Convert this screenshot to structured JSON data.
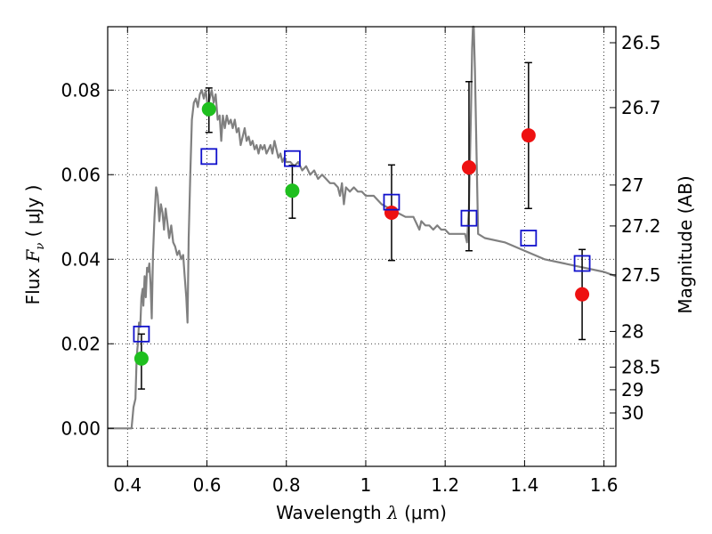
{
  "chart_data": {
    "type": "scatter",
    "xlabel": {
      "prefix": "Wavelength",
      "symbol": "λ",
      "unit": "(μm)"
    },
    "ylabel": {
      "prefix": "Flux",
      "symbol": "F",
      "subscript": "ν",
      "unit": "( μJy )"
    },
    "ylabel_right": "Magnitude (AB)",
    "xlim": [
      0.35,
      1.63
    ],
    "ylim": [
      -0.009,
      0.095
    ],
    "grid": true,
    "x_ticks": [
      {
        "value": 0.4,
        "label": "0.4"
      },
      {
        "value": 0.6,
        "label": "0.6"
      },
      {
        "value": 0.8,
        "label": "0.8"
      },
      {
        "value": 1.0,
        "label": "1"
      },
      {
        "value": 1.2,
        "label": "1.2"
      },
      {
        "value": 1.4,
        "label": "1.4"
      },
      {
        "value": 1.6,
        "label": "1.6"
      }
    ],
    "y_ticks": [
      {
        "value": 0.0,
        "label": "0.00"
      },
      {
        "value": 0.02,
        "label": "0.02"
      },
      {
        "value": 0.04,
        "label": "0.04"
      },
      {
        "value": 0.06,
        "label": "0.06"
      },
      {
        "value": 0.08,
        "label": "0.08"
      }
    ],
    "y_right_ticks": [
      {
        "value": 26.5,
        "label": "26.5"
      },
      {
        "value": 26.7,
        "label": "26.7"
      },
      {
        "value": 27.0,
        "label": "27"
      },
      {
        "value": 27.2,
        "label": "27.2"
      },
      {
        "value": 27.5,
        "label": "27.5"
      },
      {
        "value": 28.0,
        "label": "28"
      },
      {
        "value": 28.5,
        "label": "28.5"
      },
      {
        "value": 29.0,
        "label": "29"
      },
      {
        "value": 30.0,
        "label": "30"
      }
    ],
    "series": [
      {
        "type": "line",
        "color": "#808080",
        "points": [
          [
            0.35,
            0.0
          ],
          [
            0.41,
            0.0
          ],
          [
            0.415,
            0.005
          ],
          [
            0.42,
            0.007
          ],
          [
            0.423,
            0.017
          ],
          [
            0.426,
            0.02
          ],
          [
            0.429,
            0.025
          ],
          [
            0.432,
            0.024
          ],
          [
            0.435,
            0.031
          ],
          [
            0.438,
            0.033
          ],
          [
            0.44,
            0.029
          ],
          [
            0.443,
            0.036
          ],
          [
            0.446,
            0.031
          ],
          [
            0.449,
            0.038
          ],
          [
            0.452,
            0.037
          ],
          [
            0.455,
            0.039
          ],
          [
            0.458,
            0.034
          ],
          [
            0.461,
            0.026
          ],
          [
            0.464,
            0.041
          ],
          [
            0.468,
            0.05
          ],
          [
            0.472,
            0.057
          ],
          [
            0.476,
            0.055
          ],
          [
            0.48,
            0.049
          ],
          [
            0.484,
            0.053
          ],
          [
            0.488,
            0.051
          ],
          [
            0.492,
            0.047
          ],
          [
            0.496,
            0.052
          ],
          [
            0.5,
            0.049
          ],
          [
            0.505,
            0.045
          ],
          [
            0.51,
            0.048
          ],
          [
            0.515,
            0.044
          ],
          [
            0.52,
            0.043
          ],
          [
            0.525,
            0.041
          ],
          [
            0.53,
            0.042
          ],
          [
            0.535,
            0.04
          ],
          [
            0.54,
            0.041
          ],
          [
            0.544,
            0.036
          ],
          [
            0.548,
            0.031
          ],
          [
            0.551,
            0.025
          ],
          [
            0.554,
            0.045
          ],
          [
            0.558,
            0.06
          ],
          [
            0.562,
            0.073
          ],
          [
            0.567,
            0.077
          ],
          [
            0.572,
            0.078
          ],
          [
            0.577,
            0.076
          ],
          [
            0.582,
            0.079
          ],
          [
            0.587,
            0.08
          ],
          [
            0.592,
            0.078
          ],
          [
            0.597,
            0.08
          ],
          [
            0.602,
            0.076
          ],
          [
            0.607,
            0.078
          ],
          [
            0.612,
            0.08
          ],
          [
            0.617,
            0.077
          ],
          [
            0.622,
            0.079
          ],
          [
            0.627,
            0.073
          ],
          [
            0.632,
            0.074
          ],
          [
            0.636,
            0.068
          ],
          [
            0.64,
            0.074
          ],
          [
            0.645,
            0.071
          ],
          [
            0.65,
            0.074
          ],
          [
            0.655,
            0.072
          ],
          [
            0.66,
            0.073
          ],
          [
            0.665,
            0.071
          ],
          [
            0.67,
            0.073
          ],
          [
            0.675,
            0.07
          ],
          [
            0.68,
            0.071
          ],
          [
            0.685,
            0.067
          ],
          [
            0.69,
            0.069
          ],
          [
            0.695,
            0.071
          ],
          [
            0.7,
            0.068
          ],
          [
            0.705,
            0.069
          ],
          [
            0.71,
            0.067
          ],
          [
            0.715,
            0.068
          ],
          [
            0.72,
            0.066
          ],
          [
            0.725,
            0.067
          ],
          [
            0.73,
            0.065
          ],
          [
            0.735,
            0.067
          ],
          [
            0.74,
            0.066
          ],
          [
            0.745,
            0.067
          ],
          [
            0.75,
            0.065
          ],
          [
            0.755,
            0.066
          ],
          [
            0.76,
            0.067
          ],
          [
            0.765,
            0.065
          ],
          [
            0.77,
            0.068
          ],
          [
            0.775,
            0.066
          ],
          [
            0.78,
            0.064
          ],
          [
            0.785,
            0.065
          ],
          [
            0.79,
            0.063
          ],
          [
            0.795,
            0.064
          ],
          [
            0.8,
            0.063
          ],
          [
            0.81,
            0.063
          ],
          [
            0.82,
            0.062
          ],
          [
            0.83,
            0.063
          ],
          [
            0.84,
            0.061
          ],
          [
            0.85,
            0.062
          ],
          [
            0.86,
            0.06
          ],
          [
            0.87,
            0.061
          ],
          [
            0.88,
            0.059
          ],
          [
            0.89,
            0.06
          ],
          [
            0.9,
            0.059
          ],
          [
            0.91,
            0.058
          ],
          [
            0.92,
            0.058
          ],
          [
            0.93,
            0.057
          ],
          [
            0.935,
            0.055
          ],
          [
            0.94,
            0.058
          ],
          [
            0.945,
            0.053
          ],
          [
            0.95,
            0.057
          ],
          [
            0.96,
            0.056
          ],
          [
            0.97,
            0.057
          ],
          [
            0.98,
            0.056
          ],
          [
            0.99,
            0.056
          ],
          [
            1.0,
            0.055
          ],
          [
            1.02,
            0.055
          ],
          [
            1.04,
            0.053
          ],
          [
            1.06,
            0.052
          ],
          [
            1.08,
            0.051
          ],
          [
            1.1,
            0.05
          ],
          [
            1.12,
            0.05
          ],
          [
            1.135,
            0.047
          ],
          [
            1.14,
            0.049
          ],
          [
            1.15,
            0.048
          ],
          [
            1.16,
            0.048
          ],
          [
            1.17,
            0.047
          ],
          [
            1.18,
            0.048
          ],
          [
            1.19,
            0.047
          ],
          [
            1.2,
            0.047
          ],
          [
            1.21,
            0.046
          ],
          [
            1.22,
            0.046
          ],
          [
            1.23,
            0.046
          ],
          [
            1.24,
            0.046
          ],
          [
            1.25,
            0.046
          ],
          [
            1.255,
            0.044
          ],
          [
            1.26,
            0.052
          ],
          [
            1.265,
            0.075
          ],
          [
            1.268,
            0.09
          ],
          [
            1.27,
            0.095
          ],
          [
            1.272,
            0.095
          ],
          [
            1.275,
            0.085
          ],
          [
            1.28,
            0.06
          ],
          [
            1.283,
            0.046
          ],
          [
            1.3,
            0.045
          ],
          [
            1.35,
            0.044
          ],
          [
            1.4,
            0.042
          ],
          [
            1.45,
            0.04
          ],
          [
            1.5,
            0.039
          ],
          [
            1.55,
            0.038
          ],
          [
            1.6,
            0.037
          ],
          [
            1.63,
            0.036
          ]
        ]
      },
      {
        "type": "scatter",
        "marker": "circle",
        "color": "#1fbf1f",
        "points": [
          {
            "x": 0.435,
            "y": 0.0165,
            "yerr_low": 0.0093,
            "yerr_high": 0.0223
          },
          {
            "x": 0.605,
            "y": 0.0755,
            "yerr_low": 0.07,
            "yerr_high": 0.0805
          },
          {
            "x": 0.815,
            "y": 0.0562,
            "yerr_low": 0.0497,
            "yerr_high": 0.0622
          }
        ]
      },
      {
        "type": "scatter",
        "marker": "circle",
        "color": "#ee1111",
        "points": [
          {
            "x": 1.065,
            "y": 0.051,
            "yerr_low": 0.0397,
            "yerr_high": 0.0623
          },
          {
            "x": 1.26,
            "y": 0.0617,
            "yerr_low": 0.042,
            "yerr_high": 0.082
          },
          {
            "x": 1.41,
            "y": 0.0693,
            "yerr_low": 0.052,
            "yerr_high": 0.0865
          },
          {
            "x": 1.545,
            "y": 0.0317,
            "yerr_low": 0.021,
            "yerr_high": 0.0423
          }
        ]
      },
      {
        "type": "scatter",
        "marker": "square-open",
        "color": "#1111cc",
        "points": [
          {
            "x": 0.435,
            "y": 0.0223
          },
          {
            "x": 0.605,
            "y": 0.0643
          },
          {
            "x": 0.815,
            "y": 0.0638
          },
          {
            "x": 1.065,
            "y": 0.0535
          },
          {
            "x": 1.26,
            "y": 0.0497
          },
          {
            "x": 1.41,
            "y": 0.045
          },
          {
            "x": 1.545,
            "y": 0.039
          }
        ]
      }
    ]
  }
}
